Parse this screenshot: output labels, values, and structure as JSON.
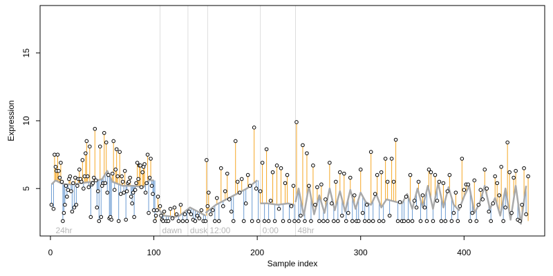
{
  "chart_data": {
    "type": "scatter",
    "title": "",
    "xlabel": "Sample index",
    "ylabel": "Expression",
    "xlim": [
      -10,
      478
    ],
    "ylim": [
      1.5,
      18.5
    ],
    "x_ticks": [
      0,
      100,
      200,
      300,
      400
    ],
    "y_ticks": [
      5,
      10,
      15
    ],
    "grid": false,
    "legend": "none",
    "baseline": 2.6,
    "colors": {
      "above_trend": "#f5a623",
      "below_trend": "#6b9bd2",
      "trend": "#a9a9a9",
      "points": "#000000",
      "phase_lines": "#dddddd",
      "phase_labels": "#b8b8b8"
    },
    "phase_markers": [
      {
        "x": 3,
        "label": "24hr",
        "line": false
      },
      {
        "x": 106,
        "label": "dawn",
        "line": true
      },
      {
        "x": 133,
        "label": "dusk",
        "line": true
      },
      {
        "x": 152,
        "label": "12:00",
        "line": true
      },
      {
        "x": 203,
        "label": "0:00",
        "line": true
      },
      {
        "x": 237,
        "label": "48hr",
        "line": true
      }
    ],
    "trend_segments": [
      {
        "x": [
          1,
          5,
          10,
          15,
          20,
          30,
          40,
          50,
          55,
          60,
          70,
          80,
          90,
          95,
          100
        ],
        "y": [
          5.3,
          5.6,
          5.4,
          5.3,
          5.3,
          5.4,
          5.5,
          5.7,
          6.3,
          5.5,
          5.2,
          5.2,
          5.1,
          5.6,
          5.6
        ]
      },
      {
        "x": [
          104,
          110,
          120,
          125,
          130,
          135,
          140,
          145,
          150
        ],
        "y": [
          3.5,
          3.0,
          2.9,
          3.0,
          3.3,
          3.6,
          3.4,
          3.2,
          3.0
        ]
      },
      {
        "x": [
          150,
          160,
          170,
          180,
          190,
          200
        ],
        "y": [
          3.2,
          3.8,
          4.2,
          4.6,
          5.0,
          5.6
        ]
      },
      {
        "x": [
          203,
          210,
          220,
          230,
          236
        ],
        "y": [
          3.9,
          3.9,
          3.8,
          3.9,
          3.8
        ]
      },
      {
        "x": [
          237,
          240,
          245,
          250,
          255,
          260,
          265,
          270,
          275,
          280,
          285,
          290,
          295,
          300,
          305,
          310,
          315,
          320,
          325,
          330,
          335,
          340,
          345,
          350,
          355,
          360,
          365,
          370,
          375,
          380,
          385,
          390,
          395,
          400,
          405,
          410,
          415,
          420,
          425,
          430,
          435,
          440,
          445,
          450,
          455,
          460
        ],
        "y": [
          4.0,
          5.0,
          3.0,
          5.2,
          3.1,
          4.5,
          3.2,
          5.0,
          3.4,
          4.8,
          3.3,
          4.9,
          3.5,
          4.7,
          4.0,
          3.8,
          4.6,
          3.6,
          4.2,
          4.1,
          4.0,
          3.9,
          4.6,
          3.5,
          5.0,
          3.6,
          5.2,
          3.5,
          5.4,
          3.6,
          5.1,
          3.8,
          3.4,
          4.4,
          5.2,
          3.2,
          3.9,
          5.2,
          3.5,
          4.3,
          3.0,
          5.0,
          2.7,
          5.2,
          2.4,
          5.2
        ]
      }
    ],
    "series": [
      {
        "name": "",
        "x": [
          1,
          3,
          4,
          5,
          6,
          7,
          8,
          9,
          10,
          11,
          12,
          13,
          14,
          15,
          16,
          17,
          18,
          19,
          20,
          21,
          22,
          23,
          24,
          25,
          26,
          27,
          28,
          29,
          30,
          31,
          32,
          33,
          34,
          35,
          36,
          37,
          38,
          39,
          40,
          41,
          42,
          43,
          44,
          45,
          46,
          47,
          48,
          49,
          50,
          51,
          52,
          53,
          54,
          55,
          56,
          57,
          58,
          59,
          60,
          61,
          62,
          63,
          64,
          65,
          66,
          67,
          68,
          69,
          70,
          71,
          72,
          73,
          74,
          75,
          76,
          77,
          78,
          79,
          80,
          81,
          82,
          83,
          84,
          85,
          86,
          87,
          88,
          89,
          90,
          91,
          92,
          93,
          94,
          95,
          96,
          97,
          98,
          99,
          100,
          101,
          102,
          103
        ],
        "y": [
          3.8,
          3.5,
          7.5,
          6.6,
          6.3,
          7.5,
          6.3,
          5.8,
          6.9,
          5.5,
          2.6,
          3.2,
          3.8,
          5.2,
          4.4,
          4.9,
          5.7,
          5.9,
          4.8,
          3.3,
          5.4,
          3.6,
          5.8,
          3.8,
          5.2,
          5.7,
          6.4,
          5.7,
          5.5,
          7.1,
          5.0,
          5.9,
          7.6,
          8.5,
          5.9,
          5.1,
          8.1,
          2.9,
          5.3,
          5.4,
          5.8,
          9.4,
          5.6,
          3.6,
          4.8,
          2.6,
          8.1,
          2.9,
          5.2,
          5.4,
          9.1,
          5.4,
          8.4,
          4.7,
          6.0,
          2.8,
          2.9,
          2.7,
          6.1,
          8.5,
          4.9,
          6.4,
          7.9,
          5.9,
          2.6,
          7.7,
          4.6,
          5.9,
          5.5,
          4.7,
          6.3,
          2.7,
          4.8,
          5.4,
          5.5,
          5.8,
          4.4,
          3.9,
          4.7,
          2.9,
          4.9,
          5.4,
          6.9,
          5.7,
          6.7,
          6.7,
          5.1,
          6.2,
          6.6,
          6.8,
          4.7,
          5.4,
          7.5,
          3.2,
          5.8,
          7.2,
          5.2,
          4.6,
          3.4,
          2.6,
          3.0,
          3.4
        ]
      },
      {
        "name": "",
        "x": [
          104,
          106,
          107,
          108,
          109,
          110,
          112,
          114,
          116,
          118,
          120,
          122,
          124,
          126,
          128,
          130,
          132,
          134,
          136,
          138,
          140,
          142,
          144,
          146,
          148,
          150,
          151,
          152,
          153,
          155,
          157,
          159,
          161,
          163,
          165,
          167,
          169,
          171,
          173,
          175,
          177,
          179,
          181,
          183,
          185,
          187,
          189,
          191,
          193,
          195,
          197,
          199,
          201,
          203,
          205,
          207,
          209,
          211,
          213,
          215,
          217,
          219,
          221,
          223,
          225,
          227,
          229,
          231,
          233,
          235,
          236
        ],
        "y": [
          4.4,
          3.7,
          3.0,
          2.7,
          2.6,
          3.3,
          2.6,
          2.6,
          3.5,
          2.8,
          3.6,
          3.1,
          2.6,
          3.8,
          2.6,
          3.1,
          2.6,
          3.3,
          3.1,
          2.7,
          2.6,
          3.0,
          2.8,
          3.4,
          2.6,
          2.6,
          7.1,
          3.7,
          4.7,
          3.1,
          3.4,
          2.6,
          4.3,
          2.6,
          6.5,
          3.7,
          4.8,
          6.1,
          4.2,
          3.3,
          2.6,
          8.5,
          5.5,
          4.7,
          5.7,
          2.6,
          3.9,
          6.0,
          5.2,
          2.6,
          9.5,
          5.0,
          2.6,
          4.8,
          6.9,
          2.6,
          7.9,
          2.6,
          4.1,
          6.2,
          2.6,
          6.7,
          3.5,
          6.5,
          2.6,
          5.4,
          6.0,
          2.6,
          3.7,
          5.2,
          2.6
        ]
      },
      {
        "name": "",
        "x": [
          238,
          240,
          242,
          244,
          246,
          248,
          250,
          252,
          254,
          256,
          258,
          260,
          262,
          264,
          266,
          268,
          270,
          272,
          274,
          276,
          278,
          280,
          282,
          284,
          286,
          288,
          290,
          292,
          294,
          296,
          298,
          300,
          302,
          304,
          306,
          308,
          310,
          312,
          314,
          316,
          318,
          320,
          322,
          324,
          326,
          328,
          330,
          332,
          334,
          336,
          338,
          340,
          342,
          344,
          346,
          348,
          350,
          352,
          354,
          356,
          358,
          360,
          362,
          364,
          366,
          368,
          370,
          372,
          374,
          376,
          378,
          380,
          382,
          384,
          386,
          388,
          390,
          392,
          394,
          396,
          398,
          400,
          402,
          404,
          406,
          408,
          410,
          412,
          414,
          416,
          418,
          420,
          422,
          424,
          426,
          428,
          430,
          432,
          434,
          436,
          438,
          440,
          442,
          444,
          446,
          448,
          450,
          452,
          454,
          456,
          458,
          460,
          462
        ],
        "y": [
          9.9,
          2.6,
          3.0,
          8.2,
          2.6,
          7.6,
          5.2,
          2.6,
          6.7,
          3.8,
          5.1,
          2.6,
          5.3,
          2.6,
          4.2,
          2.6,
          6.9,
          3.9,
          2.6,
          5.5,
          2.6,
          6.2,
          3.0,
          6.1,
          2.6,
          3.2,
          5.8,
          2.6,
          4.5,
          2.6,
          2.6,
          6.4,
          3.2,
          2.6,
          3.8,
          2.6,
          7.7,
          2.6,
          4.6,
          6.0,
          2.6,
          6.2,
          2.6,
          7.2,
          5.5,
          3.0,
          7.2,
          5.5,
          8.6,
          2.6,
          4.0,
          2.6,
          2.6,
          4.4,
          2.6,
          6.0,
          2.6,
          4.1,
          3.6,
          5.5,
          2.6,
          4.5,
          3.6,
          2.6,
          6.4,
          6.2,
          2.6,
          6.0,
          4.1,
          5.5,
          2.6,
          5.4,
          2.6,
          4.8,
          6.0,
          2.6,
          3.2,
          4.7,
          2.6,
          3.7,
          7.2,
          4.9,
          5.3,
          5.3,
          2.6,
          3.2,
          5.6,
          2.6,
          3.8,
          4.9,
          4.2,
          6.4,
          5.0,
          3.3,
          2.6,
          3.9,
          5.9,
          5.4,
          4.5,
          6.6,
          2.6,
          3.6,
          8.4,
          6.2,
          3.2,
          5.8,
          6.3,
          2.7,
          2.6,
          3.8,
          6.5,
          3.1,
          5.9
        ]
      }
    ]
  }
}
